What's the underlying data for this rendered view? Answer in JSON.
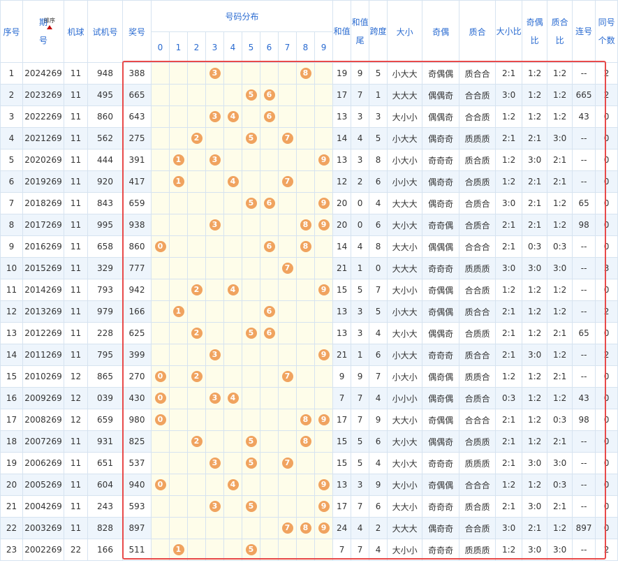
{
  "headers": {
    "xuhao": "序号",
    "qihao_line1": "期",
    "qihao_line2": "号",
    "sort_label": "排序",
    "jiqiu": "机球",
    "shijihao": "试机号",
    "jianghao": "奖号",
    "distribution": "号码分布",
    "digits": [
      "0",
      "1",
      "2",
      "3",
      "4",
      "5",
      "6",
      "7",
      "8",
      "9"
    ],
    "hezhi": "和值",
    "hezhiwei": "和值尾",
    "kuadu": "跨度",
    "daxiao": "大小",
    "jiou": "奇偶",
    "zhihe": "质合",
    "daxiaobi": "大小比",
    "jioubi": "奇偶比",
    "zhihebi": "质合比",
    "lianhao": "连号",
    "tonghaogeshu": "同号个数"
  },
  "colors": {
    "header_text": "#2a6bd1",
    "ball": "#f0a35f",
    "dist_bg": "#fefdea",
    "row_alt": "#eef5fc",
    "highlight": "#e84a4a"
  },
  "rows": [
    {
      "idx": "1",
      "period": "2024269",
      "machine": "11",
      "test": "948",
      "prize": "388",
      "digits": [
        3,
        8
      ],
      "sum": "19",
      "sumTail": "9",
      "span": "5",
      "bigSmall": "小大大",
      "oddEven": "奇偶偶",
      "primeComp": "质合合",
      "bsRatio": "2:1",
      "oeRatio": "1:2",
      "pcRatio": "1:2",
      "consec": "--",
      "same": "2"
    },
    {
      "idx": "2",
      "period": "2023269",
      "machine": "11",
      "test": "495",
      "prize": "665",
      "digits": [
        5,
        6
      ],
      "sum": "17",
      "sumTail": "7",
      "span": "1",
      "bigSmall": "大大大",
      "oddEven": "偶偶奇",
      "primeComp": "合合质",
      "bsRatio": "3:0",
      "oeRatio": "1:2",
      "pcRatio": "1:2",
      "consec": "665",
      "same": "2"
    },
    {
      "idx": "3",
      "period": "2022269",
      "machine": "11",
      "test": "860",
      "prize": "643",
      "digits": [
        3,
        4,
        6
      ],
      "sum": "13",
      "sumTail": "3",
      "span": "3",
      "bigSmall": "大小小",
      "oddEven": "偶偶奇",
      "primeComp": "合合质",
      "bsRatio": "1:2",
      "oeRatio": "1:2",
      "pcRatio": "1:2",
      "consec": "43",
      "same": "0"
    },
    {
      "idx": "4",
      "period": "2021269",
      "machine": "11",
      "test": "562",
      "prize": "275",
      "digits": [
        2,
        5,
        7
      ],
      "sum": "14",
      "sumTail": "4",
      "span": "5",
      "bigSmall": "小大大",
      "oddEven": "偶奇奇",
      "primeComp": "质质质",
      "bsRatio": "2:1",
      "oeRatio": "2:1",
      "pcRatio": "3:0",
      "consec": "--",
      "same": "0"
    },
    {
      "idx": "5",
      "period": "2020269",
      "machine": "11",
      "test": "444",
      "prize": "391",
      "digits": [
        1,
        3,
        9
      ],
      "sum": "13",
      "sumTail": "3",
      "span": "8",
      "bigSmall": "小大小",
      "oddEven": "奇奇奇",
      "primeComp": "质合质",
      "bsRatio": "1:2",
      "oeRatio": "3:0",
      "pcRatio": "2:1",
      "consec": "--",
      "same": "0"
    },
    {
      "idx": "6",
      "period": "2019269",
      "machine": "11",
      "test": "920",
      "prize": "417",
      "digits": [
        1,
        4,
        7
      ],
      "sum": "12",
      "sumTail": "2",
      "span": "6",
      "bigSmall": "小小大",
      "oddEven": "偶奇奇",
      "primeComp": "合质质",
      "bsRatio": "1:2",
      "oeRatio": "2:1",
      "pcRatio": "2:1",
      "consec": "--",
      "same": "0"
    },
    {
      "idx": "7",
      "period": "2018269",
      "machine": "11",
      "test": "843",
      "prize": "659",
      "digits": [
        5,
        6,
        9
      ],
      "sum": "20",
      "sumTail": "0",
      "span": "4",
      "bigSmall": "大大大",
      "oddEven": "偶奇奇",
      "primeComp": "合质合",
      "bsRatio": "3:0",
      "oeRatio": "2:1",
      "pcRatio": "1:2",
      "consec": "65",
      "same": "0"
    },
    {
      "idx": "8",
      "period": "2017269",
      "machine": "11",
      "test": "995",
      "prize": "938",
      "digits": [
        3,
        8,
        9
      ],
      "sum": "20",
      "sumTail": "0",
      "span": "6",
      "bigSmall": "大小大",
      "oddEven": "奇奇偶",
      "primeComp": "合质合",
      "bsRatio": "2:1",
      "oeRatio": "2:1",
      "pcRatio": "1:2",
      "consec": "98",
      "same": "0"
    },
    {
      "idx": "9",
      "period": "2016269",
      "machine": "11",
      "test": "658",
      "prize": "860",
      "digits": [
        0,
        6,
        8
      ],
      "sum": "14",
      "sumTail": "4",
      "span": "8",
      "bigSmall": "大大小",
      "oddEven": "偶偶偶",
      "primeComp": "合合合",
      "bsRatio": "2:1",
      "oeRatio": "0:3",
      "pcRatio": "0:3",
      "consec": "--",
      "same": "0"
    },
    {
      "idx": "10",
      "period": "2015269",
      "machine": "11",
      "test": "329",
      "prize": "777",
      "digits": [
        7
      ],
      "sum": "21",
      "sumTail": "1",
      "span": "0",
      "bigSmall": "大大大",
      "oddEven": "奇奇奇",
      "primeComp": "质质质",
      "bsRatio": "3:0",
      "oeRatio": "3:0",
      "pcRatio": "3:0",
      "consec": "--",
      "same": "3"
    },
    {
      "idx": "11",
      "period": "2014269",
      "machine": "11",
      "test": "793",
      "prize": "942",
      "digits": [
        2,
        4,
        9
      ],
      "sum": "15",
      "sumTail": "5",
      "span": "7",
      "bigSmall": "大小小",
      "oddEven": "奇偶偶",
      "primeComp": "合合质",
      "bsRatio": "1:2",
      "oeRatio": "1:2",
      "pcRatio": "1:2",
      "consec": "--",
      "same": "0"
    },
    {
      "idx": "12",
      "period": "2013269",
      "machine": "11",
      "test": "979",
      "prize": "166",
      "digits": [
        1,
        6
      ],
      "sum": "13",
      "sumTail": "3",
      "span": "5",
      "bigSmall": "小大大",
      "oddEven": "奇偶偶",
      "primeComp": "质合合",
      "bsRatio": "2:1",
      "oeRatio": "1:2",
      "pcRatio": "1:2",
      "consec": "--",
      "same": "2"
    },
    {
      "idx": "13",
      "period": "2012269",
      "machine": "11",
      "test": "228",
      "prize": "625",
      "digits": [
        2,
        5,
        6
      ],
      "sum": "13",
      "sumTail": "3",
      "span": "4",
      "bigSmall": "大小大",
      "oddEven": "偶偶奇",
      "primeComp": "合质质",
      "bsRatio": "2:1",
      "oeRatio": "1:2",
      "pcRatio": "2:1",
      "consec": "65",
      "same": "0"
    },
    {
      "idx": "14",
      "period": "2011269",
      "machine": "11",
      "test": "795",
      "prize": "399",
      "digits": [
        3,
        9
      ],
      "sum": "21",
      "sumTail": "1",
      "span": "6",
      "bigSmall": "小大大",
      "oddEven": "奇奇奇",
      "primeComp": "质合合",
      "bsRatio": "2:1",
      "oeRatio": "3:0",
      "pcRatio": "1:2",
      "consec": "--",
      "same": "2"
    },
    {
      "idx": "15",
      "period": "2010269",
      "machine": "12",
      "test": "865",
      "prize": "270",
      "digits": [
        0,
        2,
        7
      ],
      "sum": "9",
      "sumTail": "9",
      "span": "7",
      "bigSmall": "小大小",
      "oddEven": "偶奇偶",
      "primeComp": "质质合",
      "bsRatio": "1:2",
      "oeRatio": "1:2",
      "pcRatio": "2:1",
      "consec": "--",
      "same": "0"
    },
    {
      "idx": "16",
      "period": "2009269",
      "machine": "12",
      "test": "039",
      "prize": "430",
      "digits": [
        0,
        3,
        4
      ],
      "sum": "7",
      "sumTail": "7",
      "span": "4",
      "bigSmall": "小小小",
      "oddEven": "偶奇偶",
      "primeComp": "合质合",
      "bsRatio": "0:3",
      "oeRatio": "1:2",
      "pcRatio": "1:2",
      "consec": "43",
      "same": "0"
    },
    {
      "idx": "17",
      "period": "2008269",
      "machine": "12",
      "test": "659",
      "prize": "980",
      "digits": [
        0,
        8,
        9
      ],
      "sum": "17",
      "sumTail": "7",
      "span": "9",
      "bigSmall": "大大小",
      "oddEven": "奇偶偶",
      "primeComp": "合合合",
      "bsRatio": "2:1",
      "oeRatio": "1:2",
      "pcRatio": "0:3",
      "consec": "98",
      "same": "0"
    },
    {
      "idx": "18",
      "period": "2007269",
      "machine": "11",
      "test": "931",
      "prize": "825",
      "digits": [
        2,
        5,
        8
      ],
      "sum": "15",
      "sumTail": "5",
      "span": "6",
      "bigSmall": "大小大",
      "oddEven": "偶偶奇",
      "primeComp": "合质质",
      "bsRatio": "2:1",
      "oeRatio": "1:2",
      "pcRatio": "2:1",
      "consec": "--",
      "same": "0"
    },
    {
      "idx": "19",
      "period": "2006269",
      "machine": "11",
      "test": "651",
      "prize": "537",
      "digits": [
        3,
        5,
        7
      ],
      "sum": "15",
      "sumTail": "5",
      "span": "4",
      "bigSmall": "大小大",
      "oddEven": "奇奇奇",
      "primeComp": "质质质",
      "bsRatio": "2:1",
      "oeRatio": "3:0",
      "pcRatio": "3:0",
      "consec": "--",
      "same": "0"
    },
    {
      "idx": "20",
      "period": "2005269",
      "machine": "11",
      "test": "604",
      "prize": "940",
      "digits": [
        0,
        4,
        9
      ],
      "sum": "13",
      "sumTail": "3",
      "span": "9",
      "bigSmall": "大小小",
      "oddEven": "奇偶偶",
      "primeComp": "合合合",
      "bsRatio": "1:2",
      "oeRatio": "1:2",
      "pcRatio": "0:3",
      "consec": "--",
      "same": "0"
    },
    {
      "idx": "21",
      "period": "2004269",
      "machine": "11",
      "test": "243",
      "prize": "593",
      "digits": [
        3,
        5,
        9
      ],
      "sum": "17",
      "sumTail": "7",
      "span": "6",
      "bigSmall": "大大小",
      "oddEven": "奇奇奇",
      "primeComp": "质合质",
      "bsRatio": "2:1",
      "oeRatio": "3:0",
      "pcRatio": "2:1",
      "consec": "--",
      "same": "0"
    },
    {
      "idx": "22",
      "period": "2003269",
      "machine": "11",
      "test": "828",
      "prize": "897",
      "digits": [
        7,
        8,
        9
      ],
      "sum": "24",
      "sumTail": "4",
      "span": "2",
      "bigSmall": "大大大",
      "oddEven": "偶奇奇",
      "primeComp": "合合质",
      "bsRatio": "3:0",
      "oeRatio": "2:1",
      "pcRatio": "1:2",
      "consec": "897",
      "same": "0"
    },
    {
      "idx": "23",
      "period": "2002269",
      "machine": "22",
      "test": "166",
      "prize": "511",
      "digits": [
        1,
        5
      ],
      "sum": "7",
      "sumTail": "7",
      "span": "4",
      "bigSmall": "大小小",
      "oddEven": "奇奇奇",
      "primeComp": "质质质",
      "bsRatio": "1:2",
      "oeRatio": "3:0",
      "pcRatio": "3:0",
      "consec": "--",
      "same": "2"
    }
  ]
}
